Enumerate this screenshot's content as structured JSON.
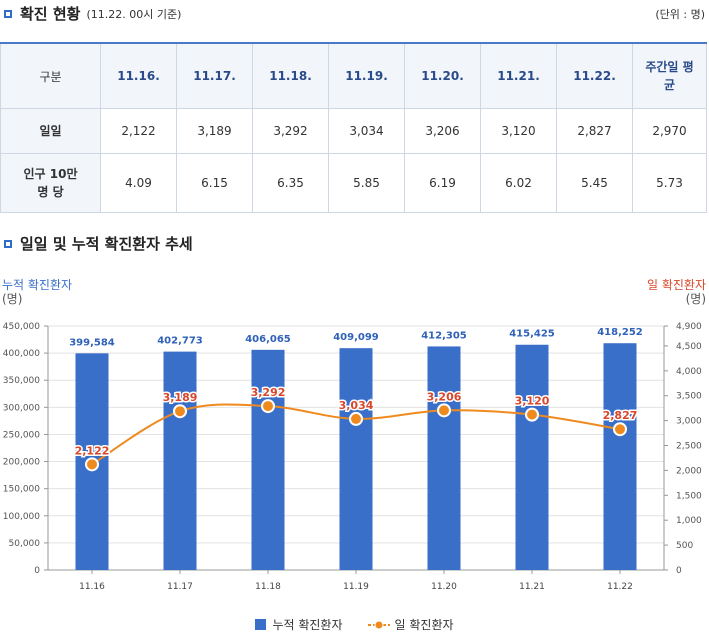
{
  "section1": {
    "title": "확진 현황",
    "subtitle": "(11.22. 00시 기준)",
    "unit": "(단위 : 명)"
  },
  "table": {
    "header": [
      "구분",
      "11.16.",
      "11.17.",
      "11.18.",
      "11.19.",
      "11.20.",
      "11.21.",
      "11.22.",
      "주간일 평균"
    ],
    "rows": [
      {
        "label": "일일",
        "values": [
          "2,122",
          "3,189",
          "3,292",
          "3,034",
          "3,206",
          "3,120",
          "2,827",
          "2,970"
        ]
      },
      {
        "label": "인구 10만 명 당",
        "values": [
          "4.09",
          "6.15",
          "6.35",
          "5.85",
          "6.19",
          "6.02",
          "5.45",
          "5.73"
        ]
      }
    ]
  },
  "section2": {
    "title": "일일 및 누적 확진환자 추세"
  },
  "chart_labels": {
    "left_axis_name": "누적 확진환자",
    "left_axis_unit": "(명)",
    "right_axis_name": "일 확진환자",
    "right_axis_unit": "(명)"
  },
  "legend": {
    "bar": "누적 확진환자",
    "line": "일 확진환자"
  },
  "colors": {
    "bar": "#3a6fc9",
    "line": "#ef8a1e",
    "line_label": "#d9472b",
    "bar_label": "#2f62b8",
    "accent": "#2f6ec8"
  },
  "chart_data": {
    "type": "bar+line",
    "categories": [
      "11.16",
      "11.17",
      "11.18",
      "11.19",
      "11.20",
      "11.21",
      "11.22"
    ],
    "series": [
      {
        "name": "누적 확진환자",
        "type": "bar",
        "axis": "left",
        "values": [
          399584,
          402773,
          406065,
          409099,
          412305,
          415425,
          418252
        ],
        "labels": [
          "399,584",
          "402,773",
          "406,065",
          "409,099",
          "412,305",
          "415,425",
          "418,252"
        ]
      },
      {
        "name": "일 확진환자",
        "type": "line",
        "axis": "right",
        "values": [
          2122,
          3189,
          3292,
          3034,
          3206,
          3120,
          2827
        ],
        "labels": [
          "2,122",
          "3,189",
          "3,292",
          "3,034",
          "3,206",
          "3,120",
          "2,827"
        ]
      }
    ],
    "left_axis": {
      "min": 0,
      "max": 450000,
      "ticks": [
        "0",
        "50,000",
        "100,000",
        "150,000",
        "200,000",
        "250,000",
        "300,000",
        "350,000",
        "400,000",
        "450,000"
      ]
    },
    "right_axis": {
      "min": 0,
      "max": 4900,
      "ticks": [
        "0",
        "500",
        "1,000",
        "1,500",
        "2,000",
        "2,500",
        "3,000",
        "3,500",
        "4,000",
        "4,500",
        "4,900"
      ]
    },
    "grid": true,
    "legend_position": "bottom"
  }
}
